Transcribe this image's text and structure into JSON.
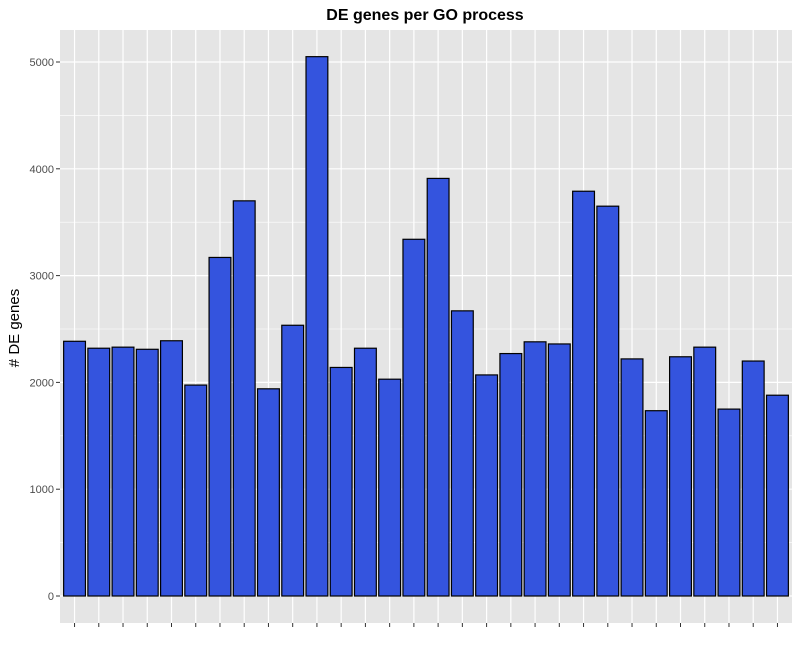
{
  "chart_data": {
    "type": "bar",
    "title": "DE genes per GO process",
    "xlabel": "",
    "ylabel": "# DE genes",
    "ylim": [
      0,
      5300
    ],
    "yticks": [
      0,
      1000,
      2000,
      3000,
      4000,
      5000
    ],
    "grid": true,
    "legend": "none",
    "colors": {
      "bar_fill": "#3454de",
      "bar_stroke": "#000000",
      "panel": "#e5e5e5",
      "grid": "#ffffff"
    },
    "categories": [
      "",
      "",
      "",
      "",
      "",
      "",
      "",
      "",
      "",
      "",
      "",
      "",
      "",
      "",
      "",
      "",
      "",
      "",
      "",
      "",
      "",
      "",
      "",
      "",
      "",
      "",
      "",
      "",
      "",
      ""
    ],
    "values": [
      2385,
      2320,
      2330,
      2310,
      2390,
      1975,
      3170,
      3700,
      1940,
      2535,
      5050,
      2140,
      2320,
      2030,
      3340,
      3910,
      2670,
      2070,
      2270,
      2380,
      2360,
      3790,
      3650,
      2220,
      1735,
      2240,
      2330,
      1750,
      2200,
      1880
    ]
  }
}
